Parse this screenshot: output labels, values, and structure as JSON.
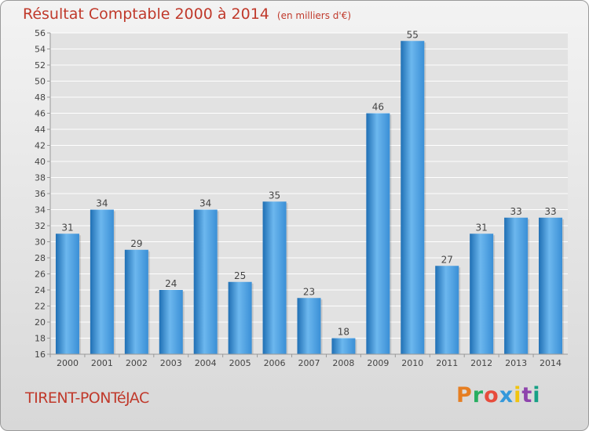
{
  "header": {
    "title": "Résultat Comptable 2000 à 2014",
    "subtitle": "(en milliers d'€)"
  },
  "footer": {
    "commune": "TIRENT-PONTéJAC",
    "logo_text": "Proxiti",
    "logo_colors": [
      "#e67e22",
      "#27ae60",
      "#e74c3c",
      "#3498db",
      "#f1c40f",
      "#8e44ad",
      "#16a085"
    ]
  },
  "colors": {
    "title": "#c0392b",
    "bar": "#3a8fd6",
    "bar_light": "#6cb7ee",
    "bar_dark": "#1f6fb4",
    "grid": "#ffffff",
    "axis": "#999999",
    "plot_bg": "#e2e2e2"
  },
  "chart_data": {
    "type": "bar",
    "title": "Résultat Comptable 2000 à 2014",
    "subtitle": "(en milliers d'€)",
    "xlabel": "",
    "ylabel": "",
    "categories": [
      "2000",
      "2001",
      "2002",
      "2003",
      "2004",
      "2005",
      "2006",
      "2007",
      "2008",
      "2009",
      "2010",
      "2011",
      "2012",
      "2013",
      "2014"
    ],
    "values": [
      31,
      34,
      29,
      24,
      34,
      25,
      35,
      23,
      18,
      46,
      55,
      27,
      31,
      33,
      33
    ],
    "ylim": [
      16,
      56
    ],
    "ytick_step": 2,
    "grid": true,
    "data_labels": true
  }
}
